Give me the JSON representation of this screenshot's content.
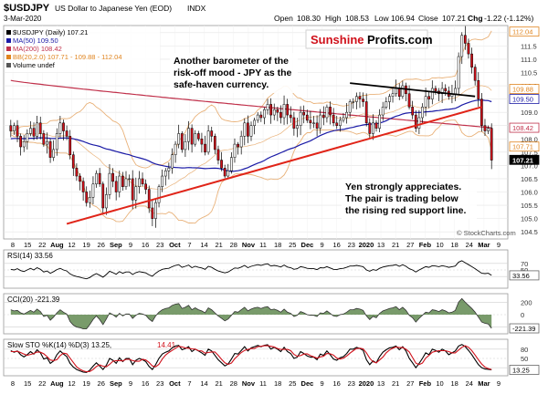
{
  "header": {
    "symbol": "$USDJPY",
    "description": "US Dollar to Japanese Yen (EOD)",
    "exchange": "INDX",
    "date": "3-Mar-2020",
    "ohlc": {
      "open_label": "Open",
      "open": "108.30",
      "high_label": "High",
      "high": "108.53",
      "low_label": "Low",
      "low": "106.94",
      "close_label": "Close",
      "close": "107.21",
      "chg_label": "Chg",
      "chg": "-1.22 (-1.12%)"
    },
    "copyright": "© StockCharts.com"
  },
  "legend": [
    {
      "text": "$USDJPY (Daily) 107.21",
      "color": "#000000"
    },
    {
      "text": "MA(50) 109.50",
      "color": "#1a1aa6"
    },
    {
      "text": "MA(200) 108.42",
      "color": "#c0304a"
    },
    {
      "text": "BB(20,2.0) 107.71 - 109.88 - 112.04",
      "color": "#e0841e"
    },
    {
      "text": "Volume undef",
      "color": "#000000"
    }
  ],
  "brand": {
    "part1": "Sunshine",
    "part2": "Profits.com"
  },
  "annotations": {
    "barometer": [
      "Another barometer of the",
      "risk-off mood - JPY as the",
      "safe-haven currency."
    ],
    "appreciates": [
      "Yen strongly appreciates.",
      "The pair is trading below",
      "the rising red support line."
    ]
  },
  "colors": {
    "candle_up": "#ffffff",
    "candle_down": "#d0101a",
    "candle_outline": "#000000",
    "ma50": "#1a1aa6",
    "ma200": "#c0304a",
    "bb": "#e9b27a",
    "support_line": "#e02418",
    "resistance_line": "#000000",
    "rsi": "#000000",
    "cci_fill": "#4c7a3a",
    "sto_k": "#000000",
    "sto_d": "#d0101a",
    "badge_price": "#000000"
  },
  "chart_data": [
    {
      "type": "candlestick",
      "title": "$USDJPY (Daily)",
      "ylim": [
        104.3,
        112.2
      ],
      "yticks": [
        104.5,
        105.0,
        105.5,
        106.0,
        106.5,
        107.0,
        107.5,
        108.0,
        108.5,
        109.0,
        109.5,
        110.0,
        110.5,
        111.0,
        111.5,
        112.0
      ],
      "ytick_labels": [
        "104.5",
        "105.0",
        "105.5",
        "106.0",
        "106.5",
        "107.0",
        "107.5",
        "108.0",
        "108.5",
        "109.0",
        "109.5",
        "110.0",
        "110.5",
        "111.0",
        "111.5",
        "112.0"
      ],
      "price_badges": [
        {
          "label": "112.04",
          "value": 112.04
        },
        {
          "label": "109.88",
          "value": 109.88
        },
        {
          "label": "109.50",
          "value": 109.5
        },
        {
          "label": "108.42",
          "value": 108.42
        },
        {
          "label": "107.71",
          "value": 107.71
        },
        {
          "label": "107.21",
          "value": 107.21
        }
      ],
      "closes": [
        108.3,
        108.5,
        108.1,
        107.7,
        107.9,
        108.2,
        108.4,
        108.1,
        108.6,
        108.2,
        107.8,
        107.9,
        107.3,
        107.6,
        108.2,
        108.6,
        108.3,
        108.1,
        107.4,
        106.9,
        106.6,
        106.4,
        106.0,
        105.6,
        105.8,
        106.3,
        106.7,
        106.3,
        105.4,
        105.9,
        106.7,
        106.4,
        106.0,
        106.6,
        106.2,
        106.5,
        106.5,
        105.7,
        106.2,
        106.5,
        106.3,
        106.1,
        105.4,
        105.0,
        105.6,
        106.2,
        106.6,
        106.8,
        106.9,
        107.4,
        107.8,
        108.2,
        107.6,
        107.9,
        108.4,
        107.8,
        108.2,
        108.0,
        107.8,
        107.5,
        108.3,
        108.1,
        107.6,
        107.2,
        106.9,
        106.6,
        106.8,
        107.3,
        107.8,
        107.7,
        108.1,
        108.6,
        108.1,
        108.5,
        108.7,
        108.9,
        108.8,
        109.1,
        109.3,
        108.9,
        109.1,
        109.0,
        108.8,
        109.3,
        108.9,
        108.8,
        108.4,
        108.5,
        109.0,
        108.9,
        108.7,
        108.6,
        108.6,
        108.4,
        108.9,
        108.8,
        109.2,
        108.9,
        108.6,
        108.5,
        108.7,
        108.8,
        109.0,
        109.4,
        109.4,
        109.6,
        109.5,
        109.4,
        108.6,
        108.2,
        108.6,
        108.4,
        108.9,
        109.2,
        109.4,
        109.6,
        109.7,
        109.9,
        109.6,
        110.0,
        109.7,
        109.2,
        108.9,
        108.4,
        108.8,
        109.2,
        109.6,
        109.5,
        109.9,
        109.8,
        109.7,
        109.9,
        109.8,
        109.6,
        109.7,
        109.9,
        111.1,
        111.9,
        111.6,
        111.2,
        110.7,
        110.2,
        109.5,
        108.5,
        108.3,
        108.4,
        107.2
      ],
      "start_open": 108.5,
      "x_labels": [
        "8",
        "15",
        "22",
        "Aug",
        "12",
        "19",
        "26",
        "Sep",
        "9",
        "16",
        "23",
        "Oct",
        "7",
        "14",
        "21",
        "28",
        "Nov",
        "11",
        "18",
        "25",
        "Dec",
        "9",
        "16",
        "23",
        "2020",
        "13",
        "21",
        "27",
        "Feb",
        "10",
        "18",
        "24",
        "Mar",
        "9"
      ],
      "support_line": {
        "from": {
          "bar": 17,
          "price": 104.8
        },
        "to": {
          "bar": 143,
          "price": 109.2
        }
      },
      "resistance_line": {
        "from": {
          "bar": 103,
          "price": 110.1
        },
        "to": {
          "bar": 141,
          "price": 109.6
        }
      }
    },
    {
      "type": "line",
      "title": "RSI(14) 33.56",
      "ylim": [
        0,
        100
      ],
      "ytick_labels": [
        "70",
        "50",
        "30"
      ],
      "ytick_values": [
        70,
        50,
        30
      ],
      "badge": "33.56",
      "series": [
        {
          "name": "RSI(14)",
          "values": [
            52,
            50,
            54,
            48,
            45,
            50,
            55,
            50,
            57,
            52,
            44,
            47,
            40,
            45,
            51,
            55,
            50,
            47,
            38,
            33,
            30,
            28,
            25,
            23,
            27,
            34,
            39,
            34,
            28,
            36,
            46,
            42,
            37,
            45,
            40,
            44,
            44,
            36,
            42,
            45,
            43,
            41,
            35,
            31,
            40,
            47,
            52,
            54,
            55,
            60,
            64,
            66,
            58,
            61,
            65,
            57,
            61,
            58,
            56,
            52,
            61,
            58,
            52,
            47,
            44,
            41,
            44,
            50,
            56,
            55,
            59,
            64,
            57,
            61,
            64,
            66,
            64,
            67,
            69,
            62,
            64,
            62,
            59,
            65,
            59,
            57,
            52,
            54,
            60,
            58,
            55,
            54,
            54,
            51,
            57,
            56,
            60,
            56,
            52,
            51,
            54,
            55,
            58,
            62,
            62,
            64,
            62,
            60,
            50,
            46,
            51,
            49,
            55,
            59,
            61,
            63,
            64,
            66,
            61,
            66,
            61,
            54,
            50,
            44,
            50,
            55,
            60,
            58,
            63,
            62,
            60,
            63,
            61,
            58,
            60,
            62,
            74,
            78,
            72,
            66,
            60,
            54,
            47,
            40,
            39,
            40,
            33.56
          ]
        }
      ]
    },
    {
      "type": "area",
      "title": "CCI(20) -221.39",
      "ylim": [
        -280,
        280
      ],
      "ytick_labels": [
        "200",
        "0",
        "-200"
      ],
      "ytick_values": [
        200,
        0,
        -200
      ],
      "badge": "-221.39",
      "series": [
        {
          "name": "CCI(20)",
          "values": [
            80,
            60,
            70,
            30,
            10,
            40,
            70,
            40,
            90,
            50,
            -30,
            -10,
            -90,
            -40,
            30,
            80,
            40,
            10,
            -110,
            -170,
            -200,
            -210,
            -230,
            -230,
            -160,
            -80,
            -20,
            -80,
            -160,
            -70,
            30,
            0,
            -40,
            20,
            -20,
            10,
            10,
            -60,
            -10,
            20,
            10,
            -10,
            -70,
            -110,
            -20,
            40,
            80,
            100,
            110,
            150,
            170,
            180,
            100,
            120,
            150,
            80,
            110,
            80,
            60,
            30,
            110,
            80,
            30,
            -20,
            -60,
            -100,
            -70,
            -10,
            50,
            40,
            80,
            120,
            60,
            90,
            110,
            120,
            100,
            120,
            130,
            80,
            90,
            70,
            40,
            90,
            40,
            20,
            -30,
            -10,
            50,
            30,
            0,
            -10,
            -10,
            -30,
            30,
            20,
            60,
            20,
            -20,
            -30,
            0,
            10,
            40,
            80,
            80,
            100,
            90,
            70,
            -20,
            -80,
            -30,
            -50,
            20,
            60,
            80,
            100,
            110,
            130,
            80,
            120,
            70,
            -10,
            -50,
            -120,
            -60,
            -10,
            40,
            30,
            80,
            70,
            50,
            80,
            60,
            30,
            40,
            70,
            200,
            260,
            200,
            150,
            100,
            40,
            -40,
            -120,
            -140,
            -150,
            -221.39
          ]
        }
      ]
    },
    {
      "type": "line",
      "title": "Slow STO %K(14) %D(3) 13.25, 14.41",
      "ylim": [
        0,
        100
      ],
      "ytick_labels": [
        "80",
        "50",
        "20"
      ],
      "ytick_values": [
        80,
        50,
        20
      ],
      "badge": "13.25",
      "series": [
        {
          "name": "%K(14)",
          "values": [
            75,
            70,
            74,
            62,
            55,
            62,
            72,
            64,
            78,
            68,
            48,
            52,
            34,
            42,
            62,
            74,
            64,
            56,
            34,
            22,
            14,
            10,
            6,
            5,
            12,
            25,
            36,
            26,
            14,
            28,
            50,
            44,
            34,
            52,
            40,
            50,
            50,
            30,
            44,
            50,
            46,
            40,
            24,
            14,
            30,
            50,
            64,
            70,
            74,
            84,
            90,
            92,
            78,
            82,
            88,
            72,
            80,
            74,
            68,
            60,
            80,
            74,
            60,
            46,
            36,
            26,
            32,
            48,
            66,
            64,
            76,
            88,
            74,
            84,
            88,
            92,
            88,
            92,
            94,
            80,
            86,
            80,
            72,
            86,
            72,
            66,
            50,
            54,
            72,
            66,
            58,
            54,
            54,
            46,
            64,
            60,
            74,
            62,
            48,
            44,
            52,
            56,
            66,
            80,
            80,
            86,
            82,
            76,
            46,
            30,
            42,
            36,
            56,
            70,
            78,
            84,
            86,
            90,
            78,
            88,
            74,
            50,
            36,
            20,
            34,
            50,
            68,
            62,
            80,
            76,
            70,
            80,
            74,
            62,
            68,
            74,
            90,
            95,
            88,
            76,
            62,
            46,
            30,
            20,
            16,
            15,
            13.25
          ]
        },
        {
          "name": "%D(3)",
          "values": [
            72,
            72,
            73,
            69,
            64,
            60,
            63,
            66,
            71,
            70,
            65,
            56,
            45,
            43,
            46,
            59,
            67,
            65,
            51,
            37,
            23,
            15,
            10,
            7,
            8,
            14,
            24,
            29,
            25,
            23,
            31,
            41,
            43,
            43,
            42,
            47,
            47,
            43,
            41,
            41,
            47,
            45,
            37,
            26,
            23,
            31,
            48,
            61,
            69,
            76,
            83,
            89,
            87,
            84,
            83,
            81,
            80,
            75,
            74,
            67,
            69,
            71,
            71,
            60,
            47,
            36,
            31,
            35,
            49,
            59,
            69,
            76,
            79,
            82,
            82,
            88,
            89,
            91,
            91,
            89,
            87,
            82,
            79,
            79,
            79,
            75,
            63,
            57,
            59,
            64,
            65,
            59,
            55,
            51,
            55,
            57,
            66,
            65,
            61,
            51,
            48,
            51,
            58,
            67,
            75,
            82,
            83,
            81,
            68,
            51,
            39,
            36,
            45,
            54,
            68,
            77,
            83,
            87,
            85,
            85,
            80,
            71,
            53,
            35,
            30,
            35,
            51,
            60,
            70,
            73,
            75,
            75,
            75,
            72,
            68,
            68,
            77,
            86,
            91,
            86,
            75,
            61,
            46,
            32,
            22,
            17,
            14.41
          ]
        }
      ]
    }
  ]
}
